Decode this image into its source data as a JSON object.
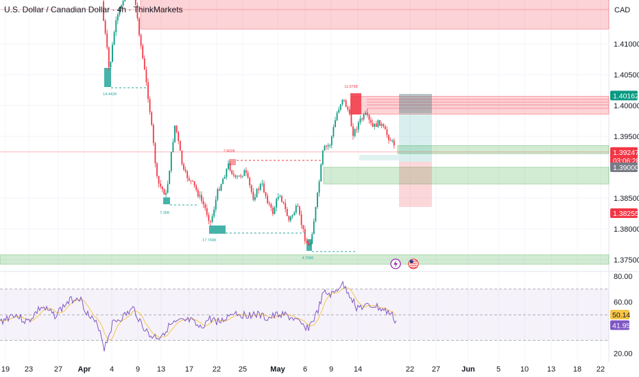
{
  "header": {
    "title": "U.S. Dollar / Canadian Dollar · 4h · ThinkMarkets",
    "currency": "CAD"
  },
  "chart_data": {
    "type": "candlestick",
    "price_axis": {
      "ticks": [
        "1.41000",
        "1.40500",
        "1.40000",
        "1.39500",
        "1.38500",
        "1.38000",
        "1.37500"
      ],
      "tick_values": [
        1.41,
        1.405,
        1.4,
        1.395,
        1.385,
        1.38,
        1.375
      ]
    },
    "price_tags": [
      {
        "value": 1.40162,
        "label": "1.40162",
        "color": "#089981"
      },
      {
        "value": 1.39247,
        "label": "1.39247",
        "sub": "03:06:28",
        "color": "#f23645"
      },
      {
        "value": 1.39,
        "label": "1.39000",
        "color": "#787b86"
      },
      {
        "value": 1.38255,
        "label": "1.38255",
        "color": "#f23645"
      }
    ],
    "time_axis": {
      "labels": [
        "19",
        "23",
        "27",
        "Apr",
        "4",
        "9",
        "13",
        "17",
        "22",
        "25",
        "May",
        "6",
        "9",
        "14",
        "22",
        "27",
        "Jun",
        "5",
        "10",
        "13",
        "18",
        "22"
      ]
    },
    "annotations": [
      "14.4428",
      "7.398",
      "7.9028",
      "17.7498",
      "4.7090",
      "11.0768"
    ],
    "zones": [
      {
        "kind": "supply",
        "from": 1.4124,
        "to": 1.4174
      },
      {
        "kind": "supply",
        "from": 1.3986,
        "to": 1.4015
      },
      {
        "kind": "demand",
        "from": 1.3922,
        "to": 1.3935
      },
      {
        "kind": "demand",
        "from": 1.3873,
        "to": 1.39
      },
      {
        "kind": "demand",
        "from": 1.3743,
        "to": 1.3758
      }
    ],
    "rsi": {
      "ticks": [
        "80.00",
        "60.00",
        "20.00"
      ],
      "tick_values": [
        80,
        60,
        20
      ],
      "values": [
        50.14,
        41.95
      ],
      "value_labels": [
        "50.14",
        "41.95"
      ],
      "upper": 70,
      "lower": 30,
      "colors": {
        "rsi": "#7e57c2",
        "ma": "#f7c548"
      }
    },
    "event_icons": [
      "lightning-icon",
      "us-flag-icon"
    ]
  }
}
